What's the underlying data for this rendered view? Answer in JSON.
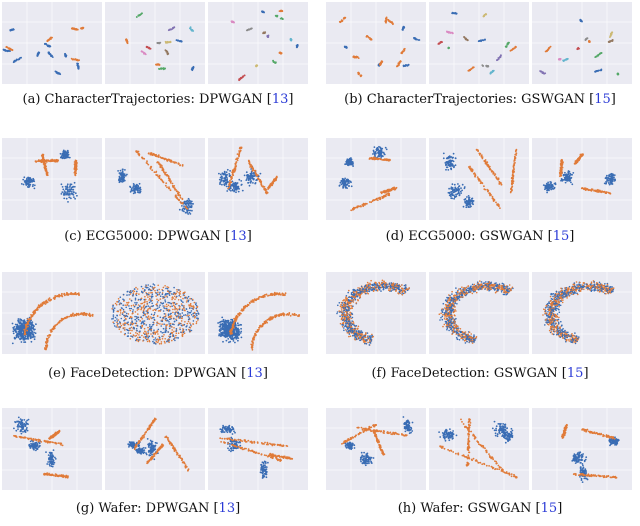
{
  "colors": {
    "blue": "#3a6db4",
    "orange": "#e07b39",
    "panel_bg": "#eaeaf2",
    "grid": "#ffffff",
    "ref": "#2a3ad6"
  },
  "figures": [
    {
      "letter": "(a)",
      "dataset": "CharacterTrajectories",
      "method": "DPWGAN",
      "ref": "13",
      "panel_styles": [
        "clusters",
        "rainbow",
        "rainbow"
      ]
    },
    {
      "letter": "(b)",
      "dataset": "CharacterTrajectories",
      "method": "GSWGAN",
      "ref": "15",
      "panel_styles": [
        "clusters",
        "rainbow",
        "rainbow"
      ]
    },
    {
      "letter": "(c)",
      "dataset": "ECG5000",
      "method": "DPWGAN",
      "ref": "13",
      "panel_styles": [
        "sparse",
        "sparse",
        "sparse"
      ]
    },
    {
      "letter": "(d)",
      "dataset": "ECG5000",
      "method": "GSWGAN",
      "ref": "15",
      "panel_styles": [
        "sparse",
        "sparse",
        "sparse"
      ]
    },
    {
      "letter": "(e)",
      "dataset": "FaceDetection",
      "method": "DPWGAN",
      "ref": "13",
      "panel_styles": [
        "arcs",
        "ellipse",
        "arcs"
      ]
    },
    {
      "letter": "(f)",
      "dataset": "FaceDetection",
      "method": "GSWGAN",
      "ref": "15",
      "panel_styles": [
        "crescent",
        "crescent",
        "crescent"
      ]
    },
    {
      "letter": "(g)",
      "dataset": "Wafer",
      "method": "DPWGAN",
      "ref": "13",
      "panel_styles": [
        "sparse",
        "sparse",
        "sparse"
      ]
    },
    {
      "letter": "(h)",
      "dataset": "Wafer",
      "method": "GSWGAN",
      "ref": "15",
      "panel_styles": [
        "sparse",
        "sparse",
        "sparse"
      ]
    }
  ]
}
